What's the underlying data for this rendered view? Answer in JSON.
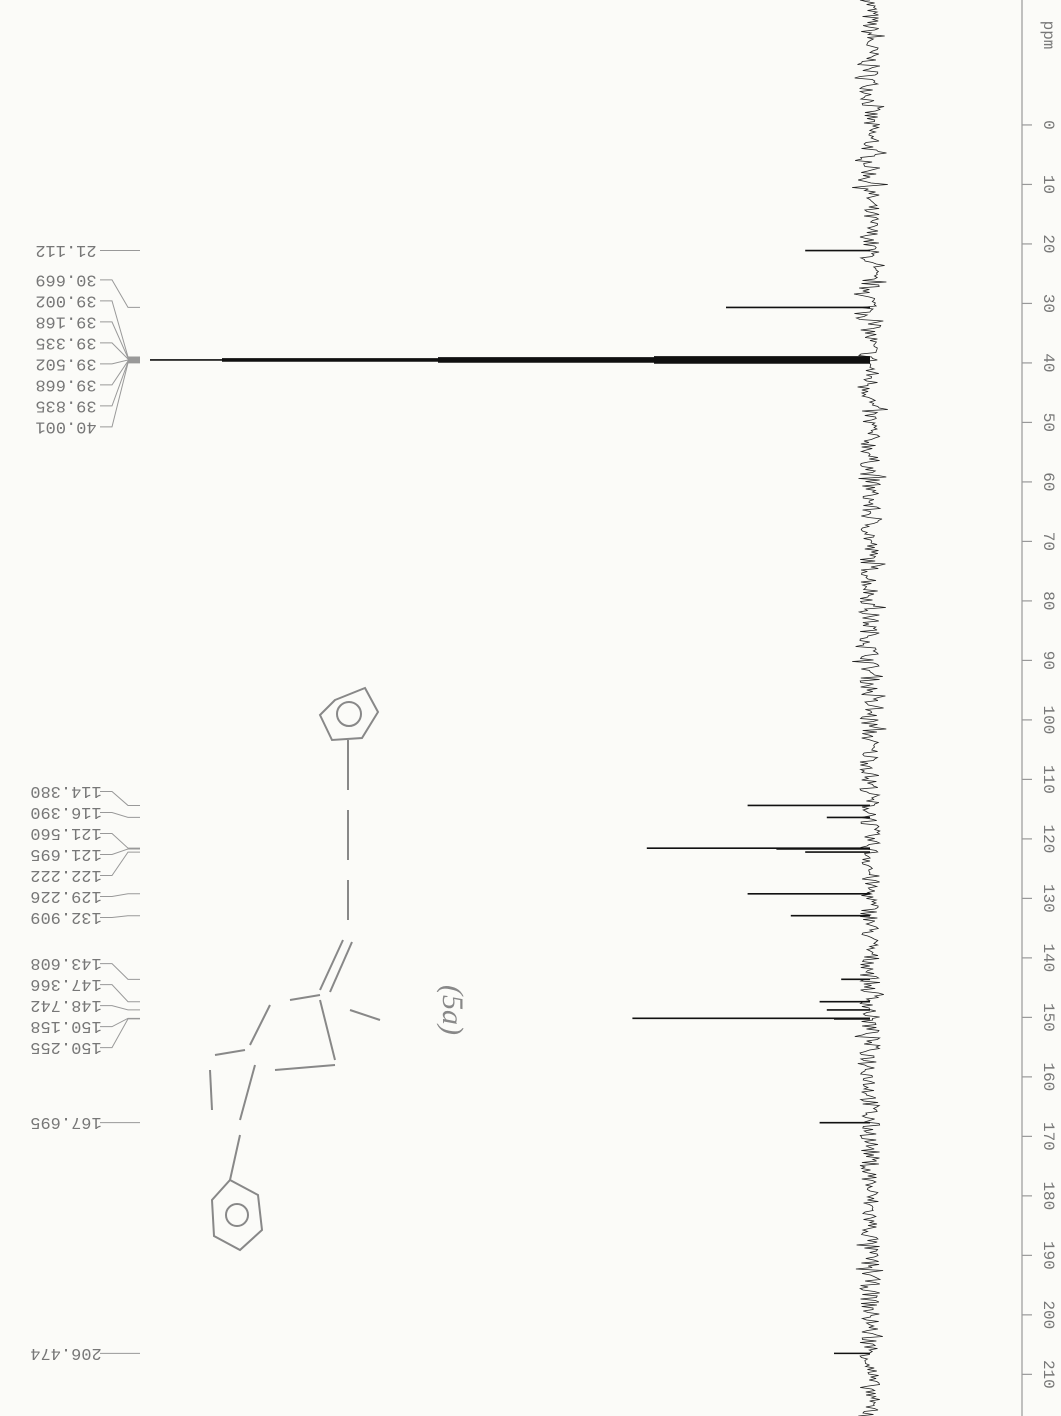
{
  "chart_data": {
    "type": "nmr",
    "x_label": "ppm",
    "xlim": [
      -21,
      217
    ],
    "xticks": [
      0,
      10,
      20,
      30,
      40,
      50,
      60,
      70,
      80,
      90,
      100,
      110,
      120,
      130,
      140,
      150,
      160,
      170,
      180,
      190,
      200,
      210
    ],
    "ylim": [
      0,
      100
    ],
    "color": "#111111",
    "x": [
      21.112,
      30.669,
      39.002,
      39.168,
      39.335,
      39.502,
      39.668,
      39.835,
      40.001,
      114.38,
      116.39,
      121.56,
      121.695,
      122.222,
      129.226,
      132.909,
      143.608,
      147.366,
      148.742,
      150.158,
      150.255,
      167.695,
      206.474
    ],
    "peak_labels": [
      "21.112",
      "30.669",
      "39.002",
      "39.168",
      "39.335",
      "39.502",
      "39.668",
      "39.835",
      "40.001",
      "114.380",
      "116.390",
      "121.560",
      "121.695",
      "122.222",
      "129.226",
      "132.909",
      "143.608",
      "147.366",
      "148.742",
      "150.158",
      "150.255",
      "167.695",
      "206.474"
    ],
    "values": [
      9,
      20,
      30,
      60,
      90,
      100,
      90,
      60,
      30,
      17,
      6,
      31,
      13,
      9,
      17,
      11,
      4,
      7,
      6,
      33,
      5,
      7,
      5
    ],
    "annotation": "(5a)"
  }
}
